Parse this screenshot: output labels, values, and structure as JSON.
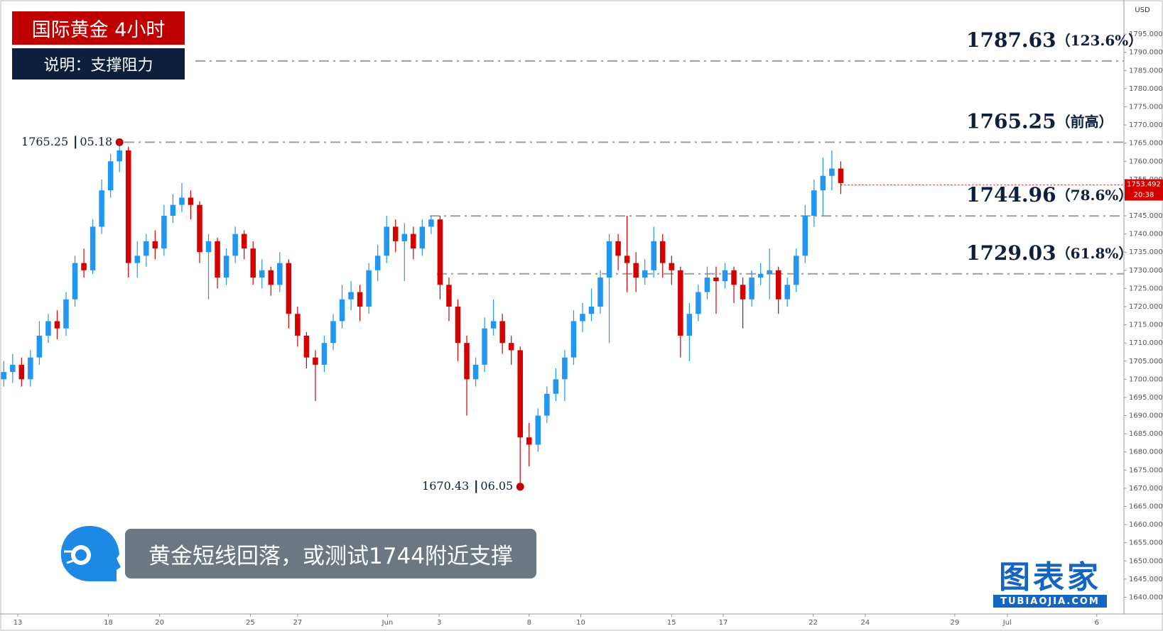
{
  "header": {
    "title": "国际黄金  4小时",
    "subtitle": "说明：支撑阻力"
  },
  "caption": "黄金短线回落，或测试1744附近支撑",
  "logo": {
    "name": "图表家",
    "site": "TUBIAOJIA.COM"
  },
  "chart_data": {
    "type": "candlestick",
    "currency": "USD",
    "up_color": "#2196f3",
    "down_color": "#d50000",
    "level_color": "#9e9e9e",
    "open": [
      1700,
      1702,
      1704,
      1700,
      1706,
      1712,
      1716,
      1714,
      1722,
      1732,
      1730,
      1742,
      1752,
      1760,
      1763,
      1732,
      1734,
      1738,
      1736,
      1745,
      1748,
      1750,
      1748,
      1735,
      1738,
      1728,
      1734,
      1740,
      1736,
      1728,
      1730,
      1726,
      1732,
      1718,
      1712,
      1706,
      1704,
      1710,
      1716,
      1722,
      1724,
      1720,
      1730,
      1734,
      1742,
      1738,
      1740,
      1736,
      1742,
      1744,
      1726,
      1720,
      1710,
      1700,
      1704,
      1714,
      1716,
      1710,
      1708,
      1684,
      1682,
      1690,
      1696,
      1700,
      1706,
      1716,
      1718,
      1720,
      1728,
      1738,
      1734,
      1732,
      1728,
      1730,
      1738,
      1732,
      1730,
      1712,
      1718,
      1724,
      1728,
      1727,
      1730,
      1726,
      1722,
      1728,
      1729,
      1730,
      1722,
      1726,
      1734,
      1745,
      1752,
      1756,
      1758
    ],
    "high": [
      1705,
      1707,
      1706,
      1708,
      1716,
      1718,
      1719,
      1724,
      1734,
      1736,
      1744,
      1755,
      1762,
      1765.25,
      1764,
      1738,
      1740,
      1741,
      1748,
      1751,
      1754,
      1752,
      1749,
      1740,
      1739,
      1736,
      1742,
      1741,
      1738,
      1733,
      1731,
      1735,
      1733,
      1720,
      1713,
      1708,
      1712,
      1718,
      1726,
      1727,
      1726,
      1732,
      1737,
      1745,
      1744,
      1743,
      1742,
      1744,
      1745,
      1745,
      1728,
      1722,
      1712,
      1706,
      1717,
      1722,
      1718,
      1712,
      1709,
      1688,
      1692,
      1698,
      1703,
      1708,
      1719,
      1721,
      1725,
      1730,
      1740,
      1740,
      1745,
      1735,
      1733,
      1742,
      1740,
      1734,
      1731,
      1721,
      1726,
      1731,
      1731,
      1732,
      1731,
      1728,
      1730,
      1732,
      1736,
      1731,
      1728,
      1736,
      1748,
      1755,
      1761,
      1763,
      1760
    ],
    "low": [
      1698,
      1699,
      1698,
      1698,
      1704,
      1710,
      1711,
      1712,
      1720,
      1728,
      1729,
      1740,
      1750,
      1757,
      1728,
      1728,
      1731,
      1733,
      1734,
      1743,
      1746,
      1744,
      1732,
      1722,
      1725,
      1726,
      1732,
      1733,
      1726,
      1725,
      1723,
      1724,
      1714,
      1709,
      1703,
      1694,
      1702,
      1708,
      1714,
      1719,
      1716,
      1718,
      1727,
      1732,
      1735,
      1727,
      1733,
      1734,
      1740,
      1722,
      1716,
      1705,
      1690,
      1698,
      1702,
      1712,
      1707,
      1704,
      1670.43,
      1676,
      1680,
      1688,
      1694,
      1694,
      1704,
      1713,
      1716,
      1718,
      1710,
      1730,
      1724,
      1724,
      1726,
      1728,
      1728,
      1726,
      1706,
      1705,
      1716,
      1722,
      1718,
      1725,
      1721,
      1714,
      1720,
      1726,
      1722,
      1718,
      1720,
      1724,
      1732,
      1742,
      1745,
      1752,
      1751
    ],
    "close": [
      1702,
      1704,
      1700,
      1706,
      1712,
      1716,
      1714,
      1722,
      1732,
      1730,
      1742,
      1752,
      1760,
      1763,
      1732,
      1734,
      1738,
      1736,
      1745,
      1748,
      1750,
      1748,
      1735,
      1738,
      1728,
      1734,
      1740,
      1736,
      1728,
      1730,
      1726,
      1732,
      1718,
      1712,
      1706,
      1704,
      1710,
      1716,
      1722,
      1724,
      1720,
      1730,
      1734,
      1742,
      1738,
      1740,
      1736,
      1742,
      1744,
      1726,
      1720,
      1710,
      1700,
      1704,
      1714,
      1716,
      1710,
      1708,
      1684,
      1682,
      1690,
      1696,
      1700,
      1706,
      1716,
      1718,
      1720,
      1728,
      1738,
      1734,
      1732,
      1728,
      1730,
      1738,
      1732,
      1730,
      1712,
      1718,
      1724,
      1728,
      1727,
      1730,
      1726,
      1722,
      1728,
      1729,
      1730,
      1722,
      1726,
      1734,
      1745,
      1752,
      1756,
      1758,
      1754
    ],
    "xlim": [
      -0.42,
      125.8
    ],
    "xticks": [
      {
        "value": 1.58,
        "label": "13"
      },
      {
        "value": 11.75,
        "label": "18"
      },
      {
        "value": 17.5,
        "label": "20"
      },
      {
        "value": 27.7,
        "label": "25"
      },
      {
        "value": 33,
        "label": "27"
      },
      {
        "value": 43.1,
        "label": "Jun"
      },
      {
        "value": 48.9,
        "label": "3"
      },
      {
        "value": 59,
        "label": "8"
      },
      {
        "value": 64.8,
        "label": "10"
      },
      {
        "value": 75,
        "label": "15"
      },
      {
        "value": 80.8,
        "label": "17"
      },
      {
        "value": 90.9,
        "label": "22"
      },
      {
        "value": 96.75,
        "label": "24"
      },
      {
        "value": 106.8,
        "label": "29"
      },
      {
        "value": 112.7,
        "label": "Jul"
      },
      {
        "value": 122.75,
        "label": "6"
      }
    ],
    "ylim": [
      1635.4,
      1804.4
    ],
    "yticks": [
      {
        "value": 1640,
        "label": "1640.000"
      },
      {
        "value": 1645,
        "label": "1645.000"
      },
      {
        "value": 1650,
        "label": "1650.000"
      },
      {
        "value": 1655,
        "label": "1655.000"
      },
      {
        "value": 1660,
        "label": "1660.000"
      },
      {
        "value": 1665,
        "label": "1665.000"
      },
      {
        "value": 1670,
        "label": "1670.000"
      },
      {
        "value": 1675,
        "label": "1675.000"
      },
      {
        "value": 1680,
        "label": "1680.000"
      },
      {
        "value": 1685,
        "label": "1685.000"
      },
      {
        "value": 1690,
        "label": "1690.000"
      },
      {
        "value": 1695,
        "label": "1695.000"
      },
      {
        "value": 1700,
        "label": "1700.000"
      },
      {
        "value": 1705,
        "label": "1705.000"
      },
      {
        "value": 1710,
        "label": "1710.000"
      },
      {
        "value": 1715,
        "label": "1715.000"
      },
      {
        "value": 1720,
        "label": "1720.000"
      },
      {
        "value": 1725,
        "label": "1725.000"
      },
      {
        "value": 1730,
        "label": "1730.000"
      },
      {
        "value": 1735,
        "label": "1735.000"
      },
      {
        "value": 1740,
        "label": "1740.000"
      },
      {
        "value": 1745,
        "label": "1745.000"
      },
      {
        "value": 1750,
        "label": "1750.000"
      },
      {
        "value": 1755,
        "label": "1755.000"
      },
      {
        "value": 1760,
        "label": "1760.000"
      },
      {
        "value": 1765,
        "label": "1765.000"
      },
      {
        "value": 1770,
        "label": "1770.000"
      },
      {
        "value": 1775,
        "label": "1775.000"
      },
      {
        "value": 1780,
        "label": "1780.000"
      },
      {
        "value": 1785,
        "label": "1785.000"
      },
      {
        "value": 1790,
        "label": "1790.000"
      },
      {
        "value": 1795,
        "label": "1795.000"
      }
    ],
    "current_price": {
      "value": 1753.492,
      "label": "1753.492",
      "countdown": "20:38"
    },
    "levels": [
      {
        "value": 1787.63,
        "note": "（123.6%）"
      },
      {
        "value": 1765.25,
        "note": "（前高）"
      },
      {
        "value": 1744.96,
        "note": "（78.6%）"
      },
      {
        "value": 1729.03,
        "note": "（61.8%）"
      }
    ],
    "annotations": [
      {
        "price": 1765.25,
        "date": "05.18"
      },
      {
        "price": 1670.43,
        "date": "06.05"
      }
    ]
  }
}
